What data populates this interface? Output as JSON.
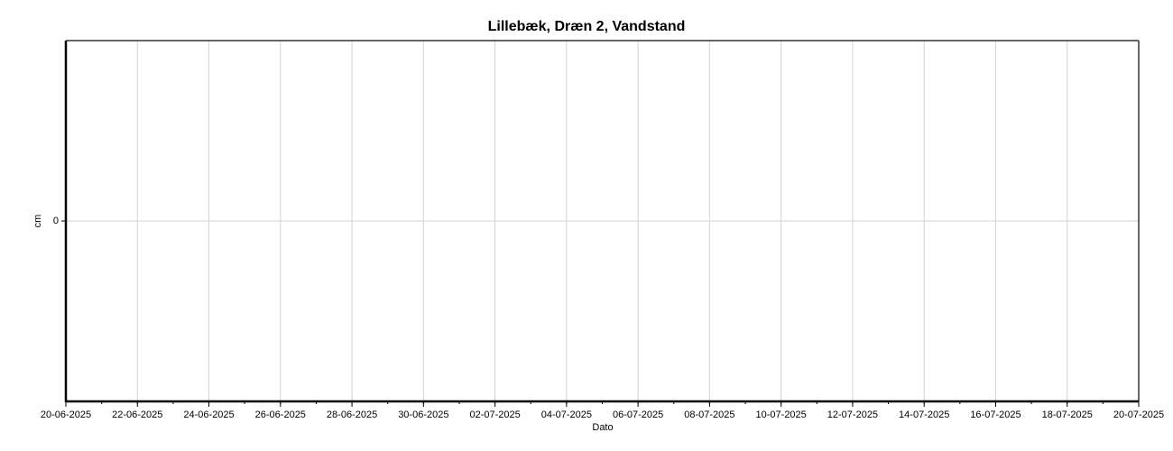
{
  "chart_data": {
    "type": "line",
    "title": "Lillebæk, Dræn 2, Vandstand",
    "x_label": "Dato",
    "y_label": "cm",
    "xlim": [
      "20-06-2025",
      "20-07-2025"
    ],
    "xticks": [
      "20-06-2025",
      "22-06-2025",
      "24-06-2025",
      "26-06-2025",
      "28-06-2025",
      "30-06-2025",
      "02-07-2025",
      "04-07-2025",
      "06-07-2025",
      "08-07-2025",
      "10-07-2025",
      "12-07-2025",
      "14-07-2025",
      "16-07-2025",
      "18-07-2025",
      "20-07-2025"
    ],
    "ylim": [
      -1,
      1
    ],
    "yticks": [
      0
    ],
    "grid": true
  }
}
